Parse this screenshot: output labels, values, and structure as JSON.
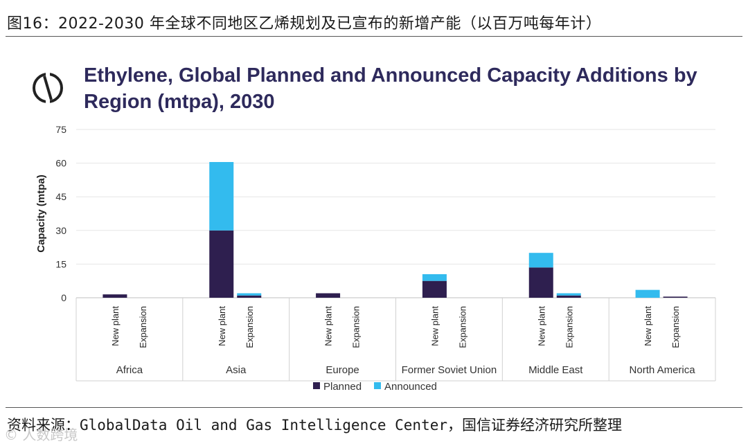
{
  "header": {
    "caption": "图16：2022-2030 年全球不同地区乙烯规划及已宣布的新增产能（以百万吨每年计）"
  },
  "footer": {
    "source": "资料来源：GlobalData Oil and Gas Intelligence Center，国信证券经济研究所整理",
    "watermark": "© 人数跨境"
  },
  "colors": {
    "planned": "#2e1f4f",
    "announced": "#33bbee",
    "title": "#2e2a5c",
    "grid": "#e6e6e6"
  },
  "chart_data": {
    "type": "bar",
    "stacked": true,
    "title": "Ethylene, Global Planned and Announced Capacity Additions by Region (mtpa), 2030",
    "ylabel": "Capacity (mtpa)",
    "xlabel": "",
    "ylim": [
      0,
      75
    ],
    "yticks": [
      0,
      15,
      30,
      45,
      60,
      75
    ],
    "grid": true,
    "legend_position": "bottom",
    "groups": [
      "Africa",
      "Asia",
      "Europe",
      "Former Soviet Union",
      "Middle East",
      "North America"
    ],
    "subcategories": [
      "New plant",
      "Expansion"
    ],
    "series": [
      {
        "name": "Planned",
        "values": [
          [
            1.5,
            0
          ],
          [
            30,
            1
          ],
          [
            2,
            0
          ],
          [
            7.5,
            0
          ],
          [
            13.5,
            1
          ],
          [
            0,
            0.5
          ]
        ]
      },
      {
        "name": "Announced",
        "values": [
          [
            0,
            0
          ],
          [
            30.5,
            1
          ],
          [
            0,
            0
          ],
          [
            3,
            0
          ],
          [
            6.5,
            1
          ],
          [
            3.5,
            0
          ]
        ]
      }
    ]
  }
}
